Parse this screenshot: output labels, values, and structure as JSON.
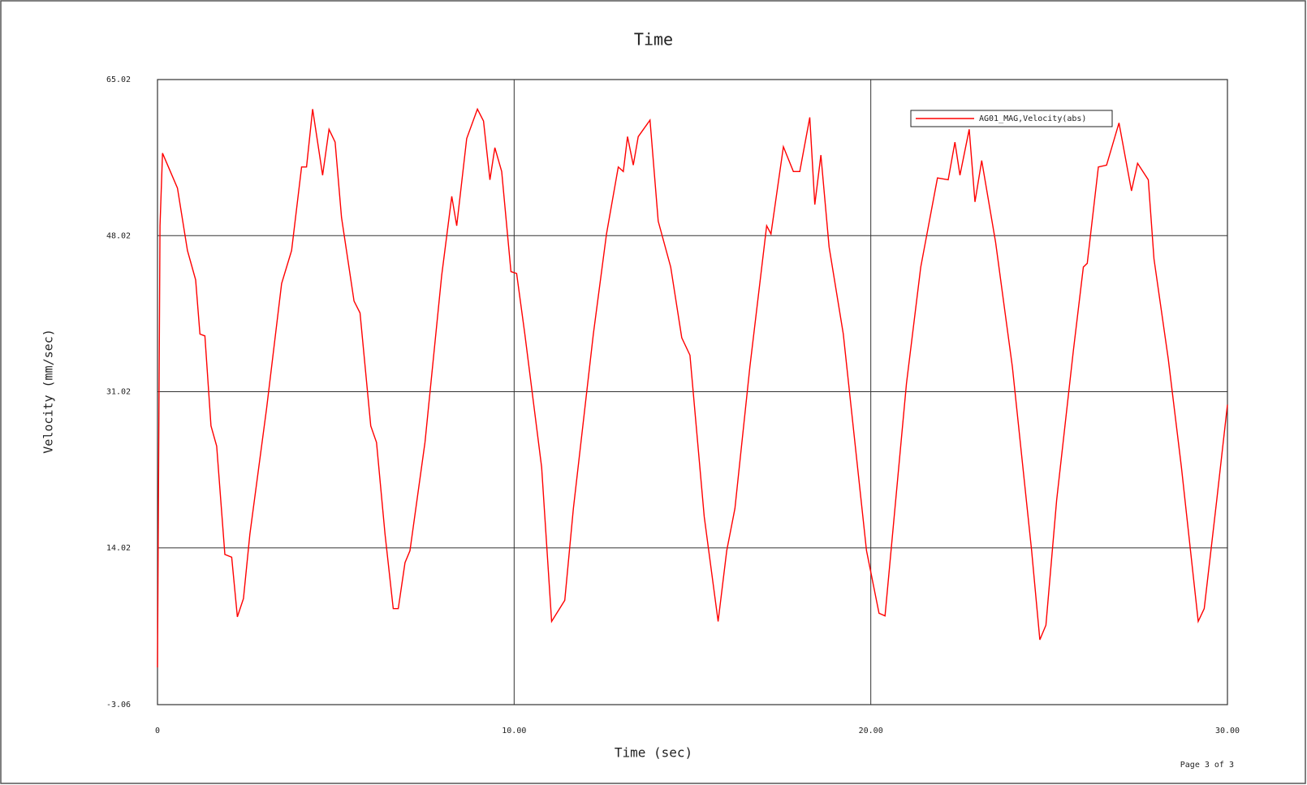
{
  "chart_data": {
    "type": "line",
    "title": "Time",
    "x_label": "Time (sec)",
    "y_label": "Velocity (mm/sec)",
    "footer": "Page 3 of 3",
    "x": [
      0,
      0.07,
      0.14,
      0.56,
      0.84,
      1.07,
      1.19,
      1.33,
      1.5,
      1.66,
      1.89,
      2.08,
      2.24,
      2.41,
      2.59,
      3.06,
      3.48,
      3.76,
      4.04,
      4.18,
      4.35,
      4.63,
      4.81,
      4.98,
      5.16,
      5.51,
      5.68,
      5.98,
      6.14,
      6.38,
      6.61,
      6.75,
      6.94,
      7.08,
      7.5,
      7.97,
      8.25,
      8.39,
      8.67,
      8.97,
      9.14,
      9.32,
      9.46,
      9.65,
      9.91,
      10.07,
      10.3,
      10.77,
      11.05,
      11.42,
      11.66,
      12.22,
      12.59,
      12.92,
      13.06,
      13.18,
      13.34,
      13.48,
      13.81,
      14.04,
      14.39,
      14.7,
      14.93,
      15.33,
      15.72,
      15.96,
      16.19,
      16.61,
      17.08,
      17.2,
      17.55,
      17.83,
      18.01,
      18.29,
      18.43,
      18.6,
      18.83,
      19.23,
      19.53,
      19.88,
      20.23,
      20.4,
      21,
      21.4,
      21.87,
      22.17,
      22.36,
      22.5,
      22.76,
      22.92,
      23.11,
      23.5,
      23.97,
      24.51,
      24.74,
      24.91,
      25.21,
      25.68,
      25.96,
      26.07,
      26.38,
      26.61,
      26.96,
      27.31,
      27.48,
      27.78,
      27.94,
      28.34,
      28.71,
      29.18,
      29.35,
      29.7,
      30
    ],
    "series": [
      {
        "name": "AG01_MAG,Velocity(abs)",
        "color": "#ff0000",
        "values": [
          1.0,
          49.1,
          57.0,
          53.2,
          46.4,
          43.2,
          37.3,
          37.1,
          27.3,
          25.1,
          13.3,
          13.0,
          6.5,
          8.5,
          15.5,
          29.2,
          42.8,
          46.4,
          55.5,
          55.5,
          61.8,
          54.6,
          59.6,
          58.2,
          50.0,
          40.9,
          39.6,
          27.3,
          25.5,
          15.5,
          7.4,
          7.4,
          12.4,
          13.7,
          25.5,
          43.7,
          52.3,
          49.1,
          58.6,
          61.8,
          60.5,
          54.1,
          57.6,
          55.0,
          44.1,
          43.9,
          37.3,
          22.8,
          6.0,
          8.3,
          18.3,
          37.3,
          48.2,
          55.5,
          55.0,
          58.8,
          55.7,
          58.8,
          60.6,
          49.6,
          44.6,
          36.9,
          35.0,
          17.4,
          6.0,
          13.7,
          18.3,
          33.7,
          49.1,
          48.2,
          57.7,
          55.0,
          55.0,
          60.9,
          51.4,
          56.8,
          46.8,
          37.3,
          26.4,
          13.7,
          6.9,
          6.6,
          31.9,
          44.6,
          54.3,
          54.1,
          58.2,
          54.6,
          59.6,
          51.7,
          56.2,
          47.3,
          33.7,
          13.7,
          4.0,
          5.6,
          19.2,
          35.5,
          44.6,
          45.0,
          55.5,
          55.7,
          60.3,
          52.9,
          55.9,
          54.1,
          45.5,
          34.6,
          22.8,
          6.0,
          7.4,
          19.2,
          29.6
        ]
      }
    ],
    "xlim": [
      0,
      30
    ],
    "xticks": [
      0,
      {
        "value": 10,
        "label": "10.00"
      },
      {
        "value": 20,
        "label": "20.00"
      },
      {
        "value": 30,
        "label": "30.00"
      }
    ],
    "ylim": [
      -3.06,
      65.02
    ],
    "yticks": [
      -3.06,
      14.02,
      31.02,
      48.02,
      65.02
    ],
    "grid": true,
    "legend": "upper right"
  }
}
